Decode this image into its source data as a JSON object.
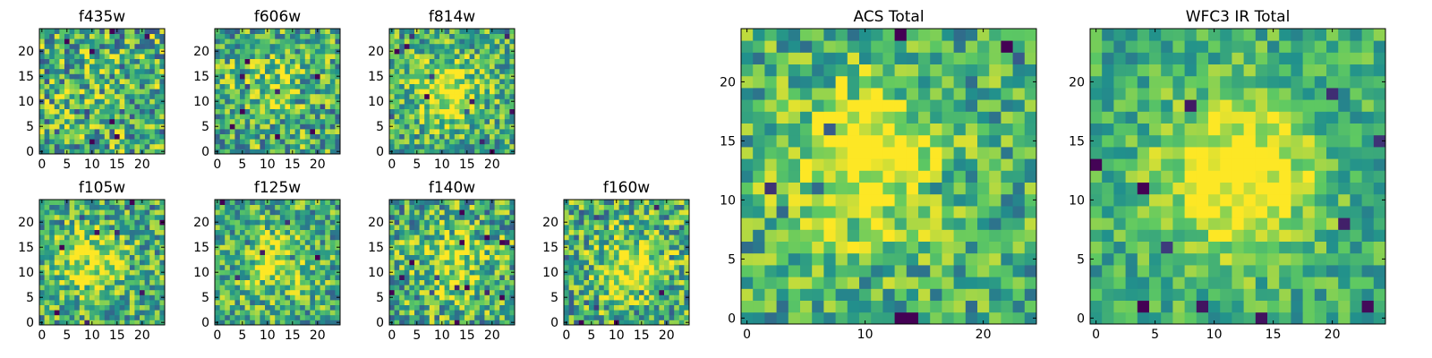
{
  "figure": {
    "colormap": [
      "#440154",
      "#3b528b",
      "#21918c",
      "#5ec962",
      "#fde725"
    ]
  },
  "chart_data": [
    {
      "type": "heatmap",
      "title": "f435w",
      "grid_size": 25,
      "xticks": [
        0,
        5,
        10,
        15,
        20
      ],
      "yticks": [
        0,
        5,
        10,
        15,
        20
      ],
      "xlim": [
        -0.5,
        24.5
      ],
      "ylim": [
        -0.5,
        24.5
      ],
      "peak": [
        12,
        12
      ],
      "peak_strength": 0.05,
      "noise": 0.55,
      "seed": 11
    },
    {
      "type": "heatmap",
      "title": "f606w",
      "grid_size": 25,
      "xticks": [
        0,
        5,
        10,
        15,
        20
      ],
      "yticks": [
        0,
        5,
        10,
        15,
        20
      ],
      "xlim": [
        -0.5,
        24.5
      ],
      "ylim": [
        -0.5,
        24.5
      ],
      "peak": [
        10,
        13
      ],
      "peak_strength": 0.2,
      "noise": 0.5,
      "seed": 23
    },
    {
      "type": "heatmap",
      "title": "f814w",
      "grid_size": 25,
      "xticks": [
        0,
        5,
        10,
        15,
        20
      ],
      "yticks": [
        0,
        5,
        10,
        15,
        20
      ],
      "xlim": [
        -0.5,
        24.5
      ],
      "ylim": [
        -0.5,
        24.5
      ],
      "peak": [
        11,
        12
      ],
      "peak_strength": 0.4,
      "noise": 0.45,
      "seed": 37
    },
    {
      "type": "heatmap",
      "title": "f105w",
      "grid_size": 25,
      "xticks": [
        0,
        5,
        10,
        15,
        20
      ],
      "yticks": [
        0,
        5,
        10,
        15,
        20
      ],
      "xlim": [
        -0.5,
        24.5
      ],
      "ylim": [
        -0.5,
        24.5
      ],
      "peak": [
        10,
        12
      ],
      "peak_strength": 0.35,
      "noise": 0.45,
      "seed": 41
    },
    {
      "type": "heatmap",
      "title": "f125w",
      "grid_size": 25,
      "xticks": [
        0,
        5,
        10,
        15,
        20
      ],
      "yticks": [
        0,
        5,
        10,
        15,
        20
      ],
      "xlim": [
        -0.5,
        24.5
      ],
      "ylim": [
        -0.5,
        24.5
      ],
      "peak": [
        12,
        12
      ],
      "peak_strength": 0.3,
      "noise": 0.45,
      "seed": 53
    },
    {
      "type": "heatmap",
      "title": "f140w",
      "grid_size": 25,
      "xticks": [
        0,
        5,
        10,
        15,
        20
      ],
      "yticks": [
        0,
        5,
        10,
        15,
        20
      ],
      "xlim": [
        -0.5,
        24.5
      ],
      "ylim": [
        -0.5,
        24.5
      ],
      "peak": [
        12,
        12
      ],
      "peak_strength": 0.3,
      "noise": 0.5,
      "seed": 67
    },
    {
      "type": "heatmap",
      "title": "f160w",
      "grid_size": 25,
      "xticks": [
        0,
        5,
        10,
        15,
        20
      ],
      "yticks": [
        0,
        5,
        10,
        15,
        20
      ],
      "xlim": [
        -0.5,
        24.5
      ],
      "ylim": [
        -0.5,
        24.5
      ],
      "peak": [
        13,
        11
      ],
      "peak_strength": 0.35,
      "noise": 0.5,
      "seed": 79
    },
    {
      "type": "heatmap",
      "title": "ACS Total",
      "grid_size": 25,
      "xticks": [
        0,
        10,
        20
      ],
      "yticks": [
        0,
        5,
        10,
        15,
        20
      ],
      "xlim": [
        -0.5,
        24.5
      ],
      "ylim": [
        -0.5,
        24.5
      ],
      "peak": [
        10,
        13
      ],
      "peak_strength": 0.45,
      "noise": 0.4,
      "seed": 97
    },
    {
      "type": "heatmap",
      "title": "WFC3 IR Total",
      "grid_size": 25,
      "xticks": [
        0,
        5,
        10,
        15,
        20
      ],
      "yticks": [
        0,
        5,
        10,
        15,
        20
      ],
      "xlim": [
        -0.5,
        24.5
      ],
      "ylim": [
        -0.5,
        24.5
      ],
      "peak": [
        12,
        12
      ],
      "peak_strength": 0.5,
      "noise": 0.3,
      "seed": 131
    }
  ]
}
